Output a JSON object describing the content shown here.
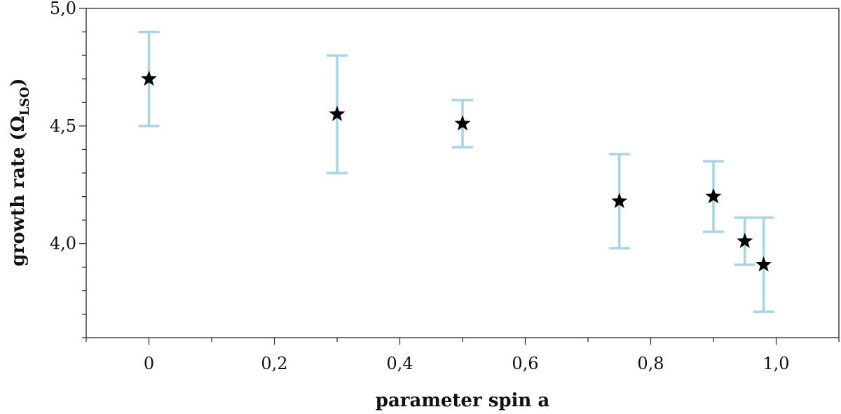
{
  "chart_data": {
    "type": "scatter",
    "xlabel": "parameter spin a",
    "ylabel": {
      "main": "growth rate (Ω",
      "sub": "LSO",
      "close": ")"
    },
    "xlim": [
      -0.1,
      1.1
    ],
    "ylim": [
      3.6,
      5.0
    ],
    "xticks": [
      {
        "value": 0.0,
        "label": "0"
      },
      {
        "value": 0.2,
        "label": "0,2"
      },
      {
        "value": 0.4,
        "label": "0,4"
      },
      {
        "value": 0.6,
        "label": "0,6"
      },
      {
        "value": 0.8,
        "label": "0,8"
      },
      {
        "value": 1.0,
        "label": "1,0"
      }
    ],
    "yticks": [
      {
        "value": 4.0,
        "label": "4,0"
      },
      {
        "value": 4.5,
        "label": "4,5"
      },
      {
        "value": 5.0,
        "label": "5,0"
      }
    ],
    "x_minor_step": 0.1,
    "y_minor_step": 0.1,
    "grid": false,
    "series": [
      {
        "marker": "star",
        "marker_color": "#000000",
        "errorbar_color": "#a8d4e6",
        "points": [
          {
            "x": 0.0,
            "y": 4.7,
            "y_low": 4.5,
            "y_high": 4.9
          },
          {
            "x": 0.3,
            "y": 4.55,
            "y_low": 4.3,
            "y_high": 4.8
          },
          {
            "x": 0.5,
            "y": 4.51,
            "y_low": 4.41,
            "y_high": 4.61
          },
          {
            "x": 0.75,
            "y": 4.18,
            "y_low": 3.98,
            "y_high": 4.38
          },
          {
            "x": 0.9,
            "y": 4.2,
            "y_low": 4.05,
            "y_high": 4.35
          },
          {
            "x": 0.95,
            "y": 4.01,
            "y_low": 3.91,
            "y_high": 4.11
          },
          {
            "x": 0.98,
            "y": 3.91,
            "y_low": 3.71,
            "y_high": 4.11
          }
        ]
      }
    ]
  }
}
